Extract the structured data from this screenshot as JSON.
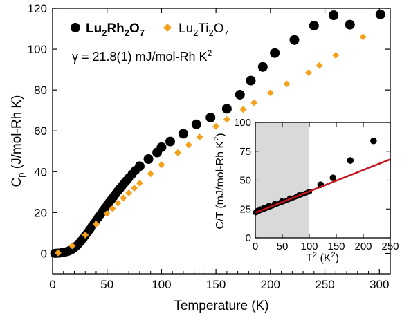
{
  "chart_data": [
    {
      "type": "scatter",
      "ylabel": "C_p (J/mol-Rh K)",
      "xlabel": "Temperature (K)",
      "xlim": [
        0,
        310
      ],
      "ylim": [
        -10,
        120
      ],
      "xticks": [
        0,
        50,
        100,
        150,
        200,
        250,
        300
      ],
      "yticks": [
        0,
        20,
        40,
        60,
        80,
        100,
        120
      ],
      "legend": {
        "placement": "top-left",
        "items": [
          "Lu2Rh2O7",
          "Lu2Ti2O7"
        ]
      },
      "annotation": "γ = 21.8(1) mJ/mol-Rh K²",
      "series": [
        {
          "name": "Lu2Rh2O7",
          "color": "#000000",
          "marker": "circle",
          "x": [
            2,
            3,
            4,
            5,
            6,
            7,
            8,
            9,
            10,
            11,
            12,
            13,
            14,
            15,
            16,
            17,
            18,
            19,
            20,
            22,
            24,
            26,
            28,
            30,
            32,
            34,
            36,
            38,
            40,
            42,
            44,
            46,
            48,
            50,
            52,
            54,
            56,
            58,
            60,
            62,
            64,
            66,
            68,
            70,
            73,
            76,
            80,
            88,
            96,
            100,
            108,
            120,
            132,
            145,
            160,
            172,
            182,
            193,
            204,
            222,
            240,
            258,
            273,
            301
          ],
          "y": [
            0.05,
            0.07,
            0.1,
            0.13,
            0.17,
            0.22,
            0.28,
            0.36,
            0.45,
            0.55,
            0.7,
            0.85,
            1.0,
            1.2,
            1.45,
            1.7,
            2.0,
            2.35,
            2.75,
            3.7,
            4.8,
            6.0,
            7.3,
            8.7,
            10.1,
            11.6,
            13.1,
            14.6,
            16.1,
            17.6,
            19.1,
            20.6,
            22.1,
            23.6,
            25.0,
            26.4,
            27.8,
            29.2,
            30.6,
            31.9,
            33.2,
            34.5,
            35.7,
            37.0,
            38.8,
            40.6,
            42.7,
            46.2,
            49.4,
            52.0,
            54.8,
            58.6,
            63.2,
            66.5,
            70.8,
            77.7,
            84.6,
            91.3,
            98.1,
            104.5,
            111.5,
            116.6,
            112.0,
            117.0
          ]
        },
        {
          "name": "Lu2Ti2O7",
          "color": "#f5a11c",
          "marker": "diamond",
          "x": [
            5,
            18,
            30,
            40,
            50,
            55,
            60,
            65,
            70,
            75,
            80,
            90,
            100,
            115,
            125,
            135,
            150,
            160,
            175,
            185,
            200,
            215,
            235,
            245,
            260,
            285
          ],
          "y": [
            0.3,
            3.7,
            9.0,
            14.3,
            19.5,
            22.0,
            24.6,
            27.1,
            29.6,
            32.0,
            34.4,
            39.0,
            43.4,
            49.3,
            53.2,
            57.0,
            62.2,
            65.6,
            70.5,
            73.8,
            78.6,
            83.0,
            88.5,
            92.0,
            97.0,
            106.0
          ]
        }
      ]
    },
    {
      "type": "scatter",
      "xlabel": "T² (K²)",
      "ylabel": "C/T (mJ/mol-Rh K²)",
      "xlim": [
        0,
        250
      ],
      "ylim": [
        0,
        100
      ],
      "xticks": [
        0,
        50,
        100,
        150,
        200,
        250
      ],
      "yticks": [
        0,
        25,
        50,
        75,
        100
      ],
      "shaded_region_x": [
        0,
        100
      ],
      "series": [
        {
          "name": "Lu2Rh2O7",
          "color": "#000000",
          "marker": "circle",
          "x": [
            1,
            4,
            9,
            16,
            25,
            36,
            49,
            64,
            81,
            100,
            121,
            144,
            176,
            219
          ],
          "y": [
            22.0,
            23.4,
            24.8,
            26.2,
            27.7,
            29.5,
            31.7,
            34.2,
            37.0,
            40.0,
            46.0,
            52.0,
            67.0,
            84.0
          ]
        },
        {
          "name": "linear fit",
          "color": "#c2141c",
          "type": "line",
          "x": [
            0,
            250
          ],
          "y": [
            21.8,
            68.0
          ]
        }
      ]
    }
  ]
}
